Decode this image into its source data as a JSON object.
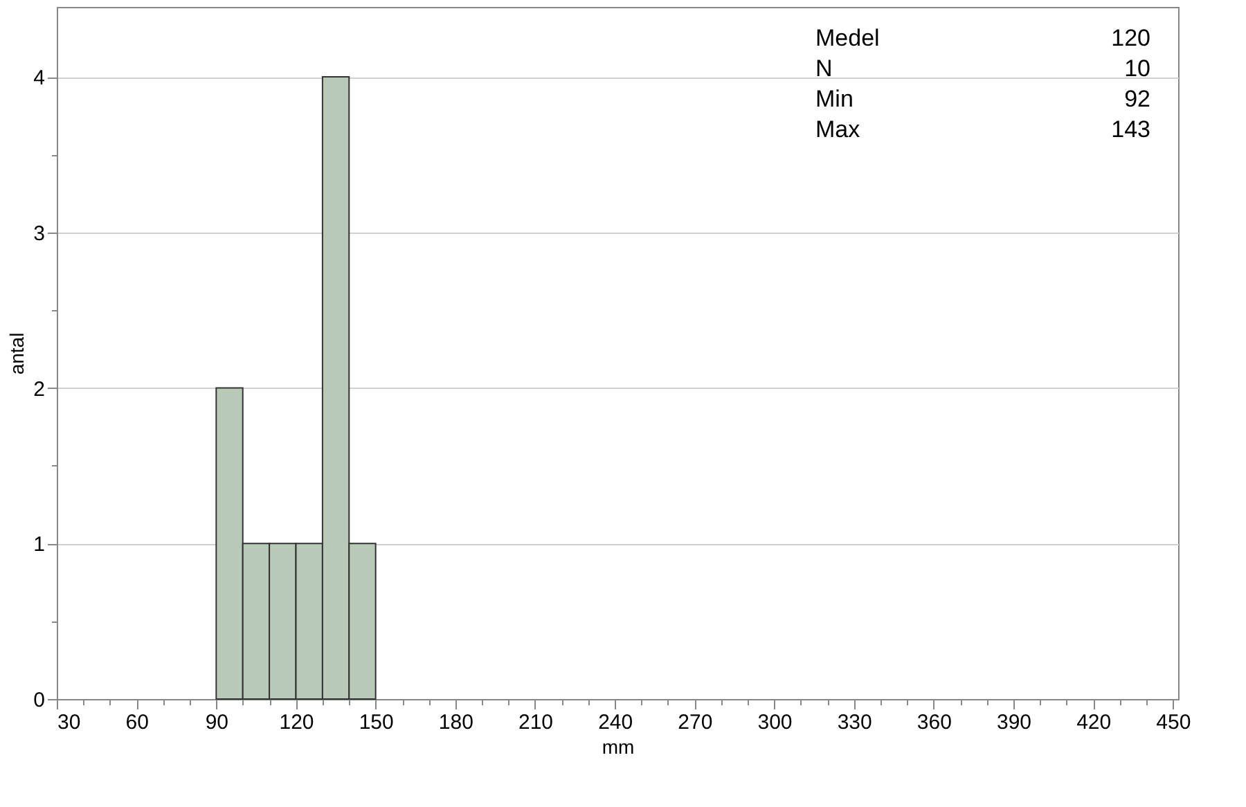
{
  "chart_data": {
    "type": "histogram",
    "xlabel": "mm",
    "ylabel": "antal",
    "bins": [
      90,
      100,
      110,
      120,
      130,
      140,
      150
    ],
    "values": [
      2,
      1,
      1,
      1,
      4,
      1
    ],
    "color": "#b8c9b8",
    "xlim": [
      30,
      452
    ],
    "ylim": [
      0,
      4.45
    ],
    "xticks": [
      30,
      {
        "value": 40,
        "label": null
      },
      {
        "value": 50,
        "label": null
      },
      60,
      {
        "value": 70,
        "label": null
      },
      {
        "value": 80,
        "label": null
      },
      90,
      {
        "value": 100,
        "label": null
      },
      {
        "value": 110,
        "label": null
      },
      120,
      {
        "value": 130,
        "label": null
      },
      {
        "value": 140,
        "label": null
      },
      150,
      {
        "value": 160,
        "label": null
      },
      {
        "value": 170,
        "label": null
      },
      180,
      {
        "value": 190,
        "label": null
      },
      {
        "value": 200,
        "label": null
      },
      210,
      {
        "value": 220,
        "label": null
      },
      {
        "value": 230,
        "label": null
      },
      240,
      {
        "value": 250,
        "label": null
      },
      {
        "value": 260,
        "label": null
      },
      270,
      {
        "value": 280,
        "label": null
      },
      {
        "value": 290,
        "label": null
      },
      300,
      {
        "value": 310,
        "label": null
      },
      {
        "value": 320,
        "label": null
      },
      330,
      {
        "value": 340,
        "label": null
      },
      {
        "value": 350,
        "label": null
      },
      360,
      {
        "value": 370,
        "label": null
      },
      {
        "value": 380,
        "label": null
      },
      390,
      {
        "value": 400,
        "label": null
      },
      {
        "value": 410,
        "label": null
      },
      420,
      {
        "value": 430,
        "label": null
      },
      {
        "value": 440,
        "label": null
      },
      450
    ],
    "yticks": [
      0,
      {
        "value": 0.5,
        "label": null
      },
      1,
      {
        "value": 1.5,
        "label": null
      },
      2,
      {
        "value": 2.5,
        "label": null
      },
      3,
      {
        "value": 3.5,
        "label": null
      },
      4
    ],
    "grid": "y",
    "annotations": [
      "Medel",
      "120",
      "N",
      "10",
      "Min",
      "92",
      "Max",
      "143"
    ]
  }
}
